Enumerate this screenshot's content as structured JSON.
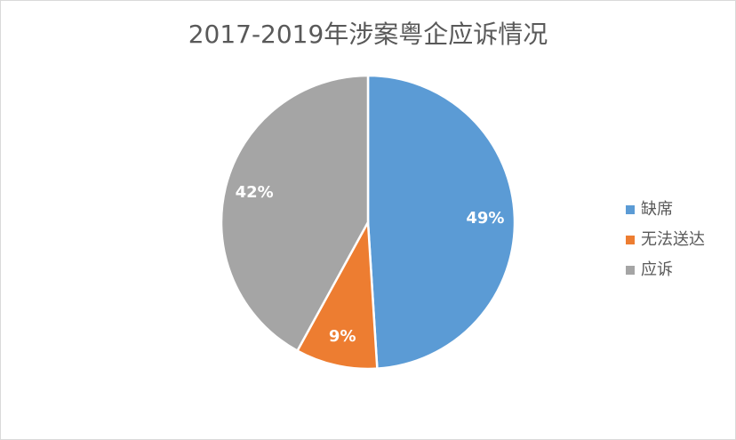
{
  "chart_data": {
    "type": "pie",
    "title": "2017-2019年涉案粤企应诉情况",
    "categories": [
      "缺席",
      "无法送达",
      "应诉"
    ],
    "values": [
      49,
      9,
      42
    ],
    "value_labels": [
      "49%",
      "9%",
      "42%"
    ],
    "colors": [
      "#5b9bd5",
      "#ed7d31",
      "#a5a5a5"
    ],
    "legend": "right"
  }
}
